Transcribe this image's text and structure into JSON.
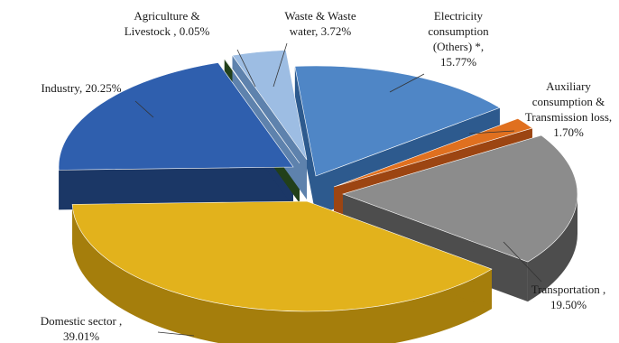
{
  "chart_data": {
    "type": "pie",
    "title": "",
    "slices": [
      {
        "label_lines": [
          "Electricity",
          "consumption",
          "(Others) *,",
          "15.77%"
        ],
        "value": 15.77,
        "color": "#4f86c6",
        "side_color": "#2d5a8e"
      },
      {
        "label_lines": [
          "Auxiliary",
          "consumption &",
          "Transmission loss,",
          "1.70%"
        ],
        "value": 1.7,
        "color": "#e0701f",
        "side_color": "#9c4512"
      },
      {
        "label_lines": [
          "Transportation ,",
          "19.50%"
        ],
        "value": 19.5,
        "color": "#8c8c8c",
        "side_color": "#4d4d4d"
      },
      {
        "label_lines": [
          "Domestic sector ,",
          "39.01%"
        ],
        "value": 39.01,
        "color": "#e2b21c",
        "side_color": "#a57e0c"
      },
      {
        "label_lines": [
          "Industry, 20.25%"
        ],
        "value": 20.25,
        "color": "#2f5fae",
        "side_color": "#1b3766"
      },
      {
        "label_lines": [
          "Agriculture &",
          "Livestock , 0.05%"
        ],
        "value": 0.05,
        "color": "#3a6b27",
        "side_color": "#22401a"
      },
      {
        "label_lines": [
          "Waste & Waste",
          "water, 3.72%"
        ],
        "value": 3.72,
        "color": "#9dbde3",
        "side_color": "#5e82ad"
      }
    ],
    "legend": "none"
  }
}
